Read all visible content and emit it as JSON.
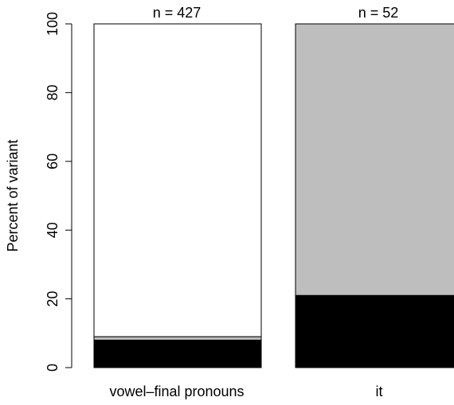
{
  "chart_data": {
    "type": "bar",
    "stacked": true,
    "ylabel": "Percent of variant",
    "ylim": [
      0,
      100
    ],
    "yticks": [
      0,
      20,
      40,
      60,
      80,
      100
    ],
    "categories": [
      "vowel–final pronouns",
      "it"
    ],
    "bar_labels": [
      "n = 427",
      "n = 52"
    ],
    "segment_colors": [
      "#000000",
      "#bebebe",
      "#ffffff"
    ],
    "series": [
      {
        "values": [
          8,
          21
        ]
      },
      {
        "values": [
          1,
          79
        ]
      },
      {
        "values": [
          91,
          0
        ]
      }
    ]
  }
}
